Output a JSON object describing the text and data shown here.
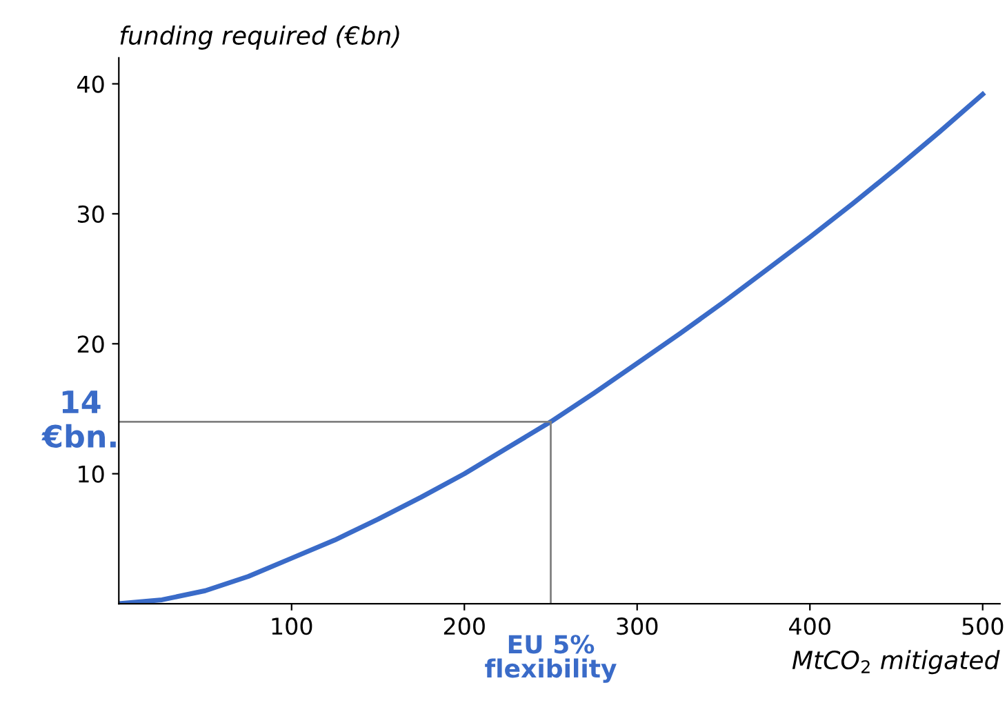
{
  "chart_data": {
    "type": "line",
    "xlabel": "MtCO$_{2}$ mitigated",
    "ylabel": "funding required (€bn)",
    "x": [
      0,
      25,
      50,
      75,
      100,
      125,
      150,
      175,
      200,
      225,
      250,
      275,
      300,
      325,
      350,
      375,
      400,
      425,
      450,
      475,
      500
    ],
    "series": [
      {
        "color": "#3a6bc8",
        "values": [
          0,
          0.3,
          1.0,
          2.1,
          3.5,
          4.9,
          6.5,
          8.2,
          10.0,
          12.0,
          14.0,
          16.2,
          18.5,
          20.8,
          23.2,
          25.7,
          28.2,
          30.8,
          33.5,
          36.3,
          39.2
        ]
      }
    ],
    "xlim": [
      0,
      510
    ],
    "ylim": [
      0,
      42
    ],
    "xticks": [
      100,
      200,
      300,
      400,
      500
    ],
    "yticks": [
      10,
      20,
      30,
      40
    ],
    "ref_lines": [
      {
        "axis": "y",
        "value": 14,
        "label": "14\n€bn.",
        "color": "#808080"
      },
      {
        "axis": "x",
        "value": 250,
        "label": "EU 5%\nflexibility",
        "color": "#808080"
      }
    ],
    "grid": false,
    "legend": false,
    "marker": "none",
    "line_style": "solid"
  }
}
